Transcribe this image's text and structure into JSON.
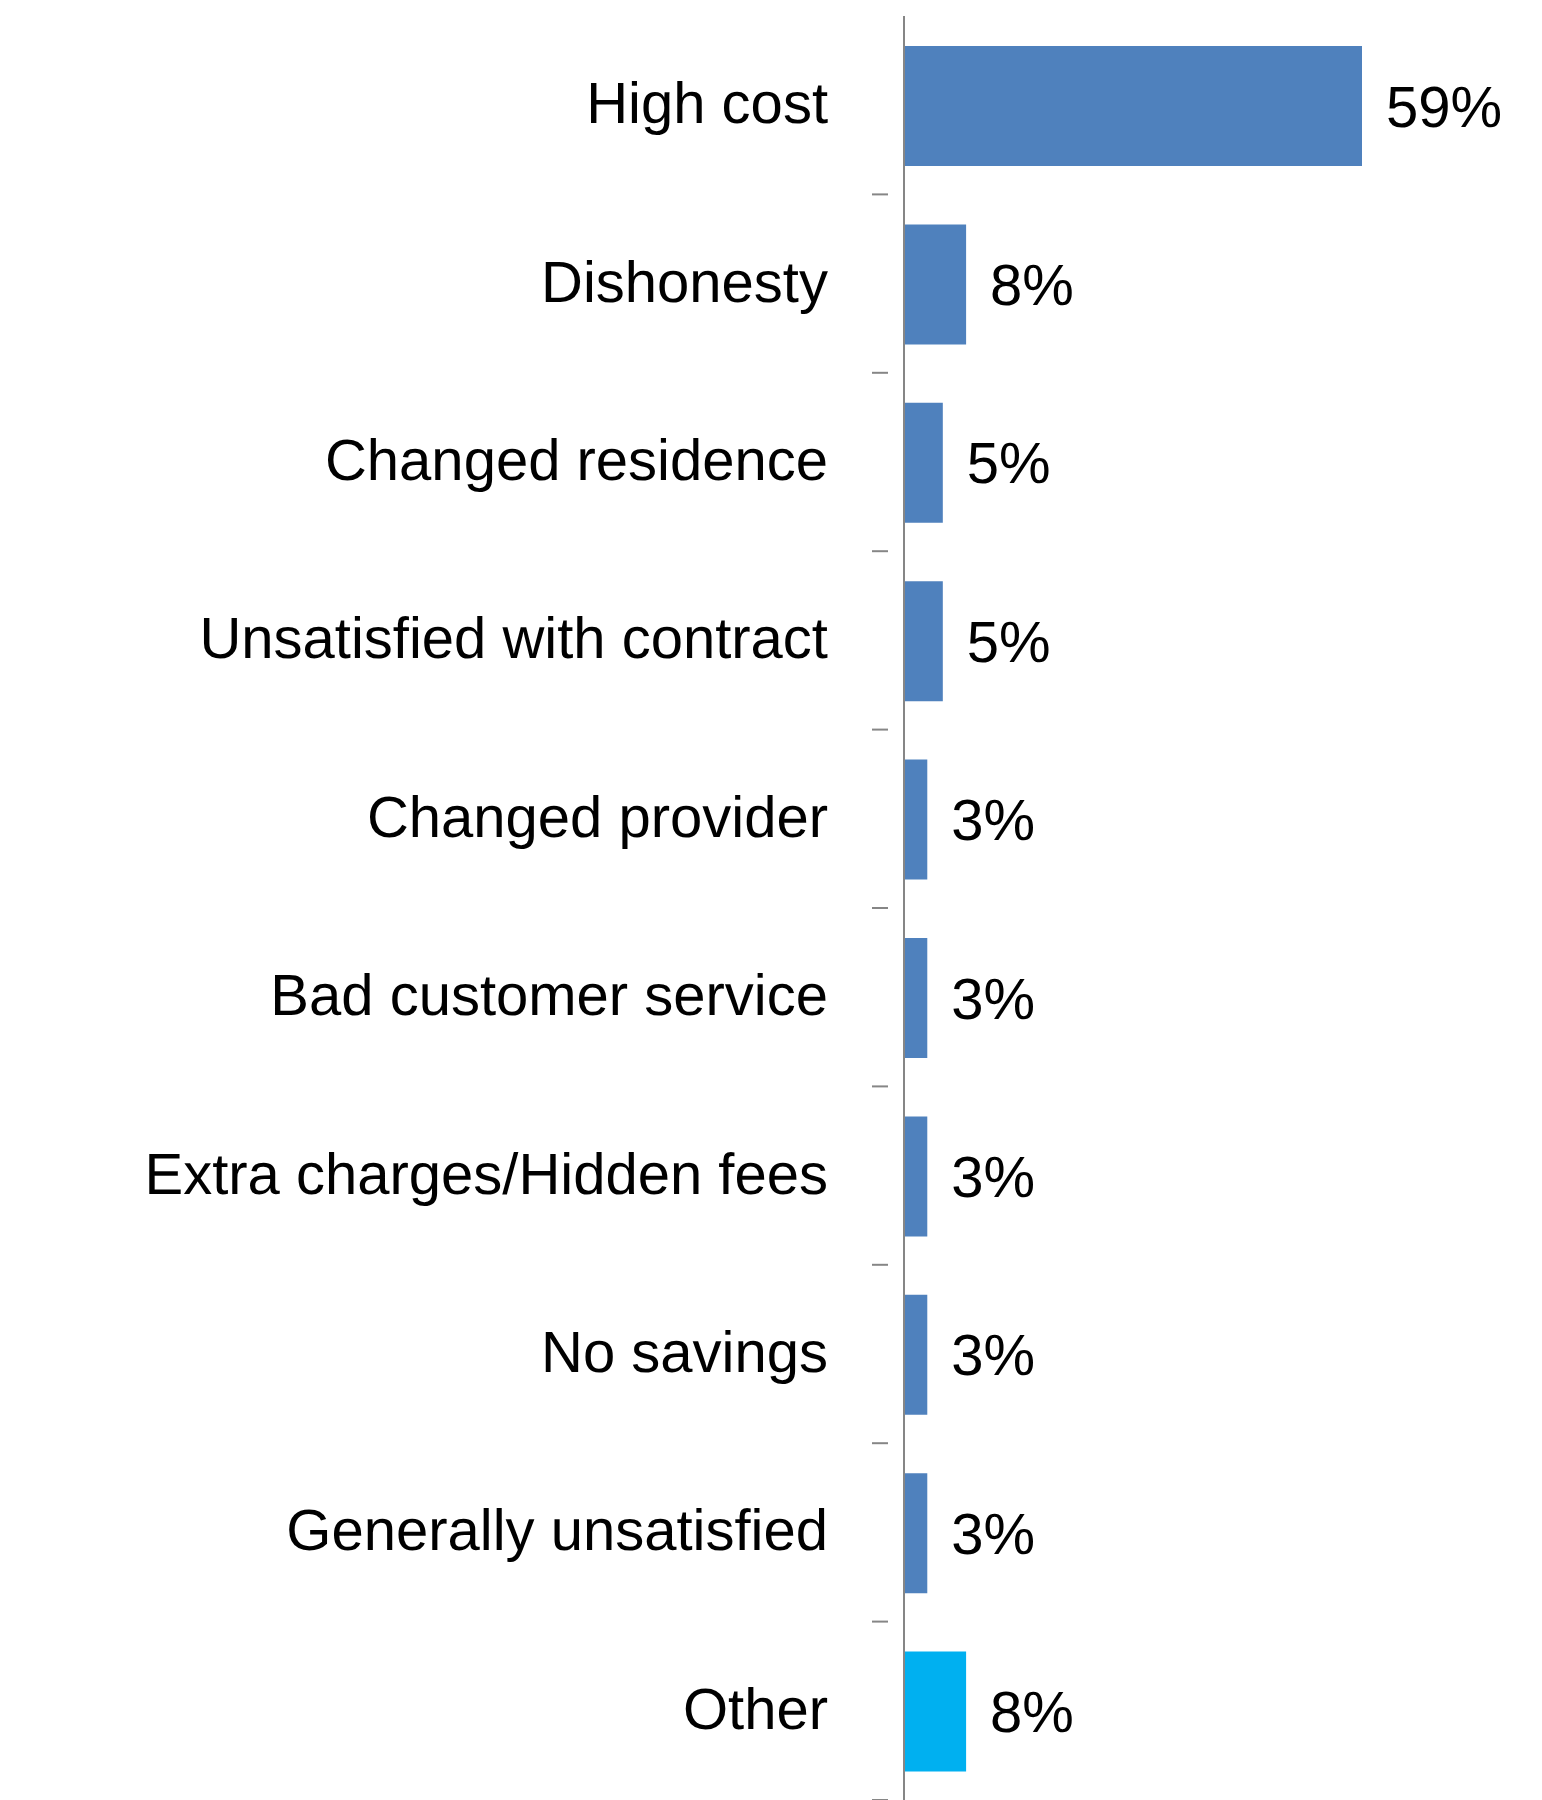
{
  "chart_data": {
    "type": "bar",
    "orientation": "horizontal",
    "categories": [
      "High cost",
      "Dishonesty",
      "Changed residence",
      "Unsatisfied with contract",
      "Changed provider",
      "Bad customer service",
      "Extra charges/Hidden fees",
      "No savings",
      "Generally unsatisfied",
      "Other"
    ],
    "values": [
      59,
      8,
      5,
      5,
      3,
      3,
      3,
      3,
      3,
      8
    ],
    "colors": [
      "#4f81bd",
      "#4f81bd",
      "#4f81bd",
      "#4f81bd",
      "#4f81bd",
      "#4f81bd",
      "#4f81bd",
      "#4f81bd",
      "#4f81bd",
      "#00b0f0"
    ],
    "value_labels": [
      "59%",
      "8%",
      "5%",
      "5%",
      "3%",
      "3%",
      "3%",
      "3%",
      "3%",
      "8%"
    ],
    "grid": false,
    "legend": false
  }
}
